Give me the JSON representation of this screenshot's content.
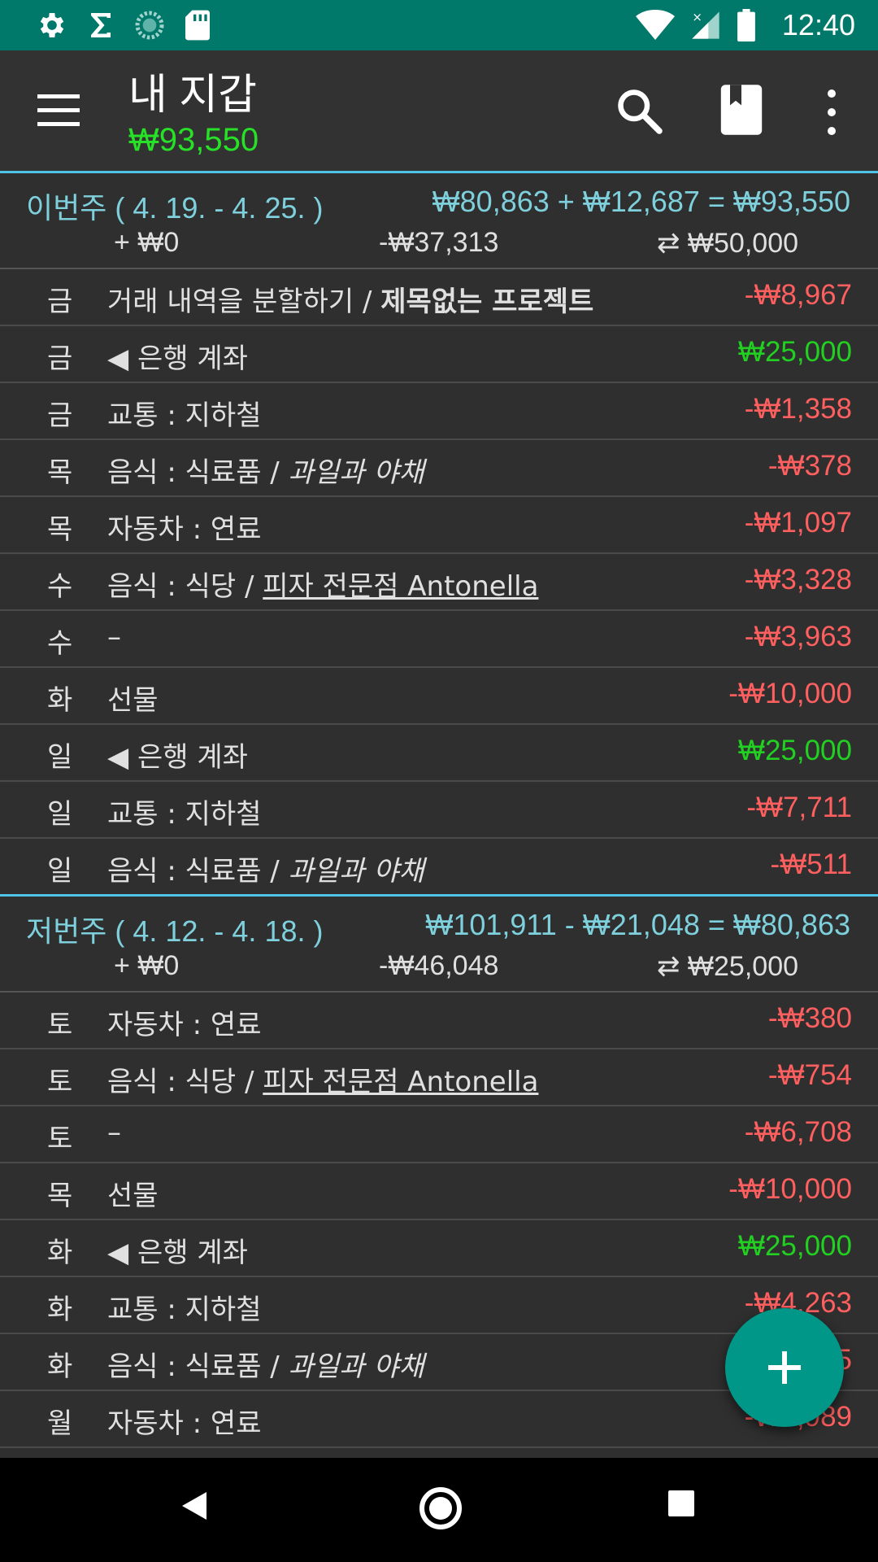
{
  "status_bar": {
    "time": "12:40",
    "icons_left": [
      "gear-icon",
      "sigma-icon",
      "sync-progress-icon",
      "sd-card-icon"
    ],
    "icons_right": [
      "wifi-icon",
      "cell-signal-icon",
      "battery-icon"
    ]
  },
  "app_bar": {
    "title": "내 지갑",
    "balance": "₩93,550",
    "actions": [
      "search-icon",
      "book-icon",
      "more-vert-icon"
    ]
  },
  "weeks": [
    {
      "label": "이번주 ( 4. 19. -  4. 25. )",
      "formula": "₩80,863 + ₩12,687 = ₩93,550",
      "income": "+ ₩0",
      "expense": "-₩37,313",
      "transfer": "⇄ ₩50,000",
      "rows": [
        {
          "day": "금",
          "desc": "거래 내역을 분할하기 / ",
          "extra": "제목없는 프로젝트",
          "amount": "-₩8,967"
        },
        {
          "day": "금",
          "desc": "◀ 은행 계좌",
          "amount": "₩25,000"
        },
        {
          "day": "금",
          "desc": "교통 : 지하철",
          "amount": "-₩1,358"
        },
        {
          "day": "목",
          "desc": "음식 : 식료품 / ",
          "extra": "과일과 야채",
          "amount": "-₩378"
        },
        {
          "day": "목",
          "desc": "자동차 : 연료",
          "amount": "-₩1,097"
        },
        {
          "day": "수",
          "desc": "음식 : 식당 / ",
          "extra": "피자 전문점 Antonella",
          "amount": "-₩3,328"
        },
        {
          "day": "수",
          "desc": "–",
          "amount": "-₩3,963"
        },
        {
          "day": "화",
          "desc": "선물",
          "amount": "-₩10,000"
        },
        {
          "day": "일",
          "desc": "◀ 은행 계좌",
          "amount": "₩25,000"
        },
        {
          "day": "일",
          "desc": "교통 : 지하철",
          "amount": "-₩7,711"
        },
        {
          "day": "일",
          "desc": "음식 : 식료품 / ",
          "extra": "과일과 야채",
          "amount": "-₩511"
        }
      ]
    },
    {
      "label": "저번주 ( 4. 12. -  4. 18. )",
      "formula": "₩101,911 - ₩21,048 = ₩80,863",
      "income": "+ ₩0",
      "expense": "-₩46,048",
      "transfer": "⇄ ₩25,000",
      "rows": [
        {
          "day": "토",
          "desc": "자동차 : 연료",
          "amount": "-₩380"
        },
        {
          "day": "토",
          "desc": "음식 : 식당 / ",
          "extra": "피자 전문점 Antonella",
          "amount": "-₩754"
        },
        {
          "day": "토",
          "desc": "–",
          "amount": "-₩6,708"
        },
        {
          "day": "목",
          "desc": "선물",
          "amount": "-₩10,000"
        },
        {
          "day": "화",
          "desc": "◀ 은행 계좌",
          "amount": "₩25,000"
        },
        {
          "day": "화",
          "desc": "교통 : 지하철",
          "amount": "-₩4,263"
        },
        {
          "day": "화",
          "desc": "음식 : 식료품 / ",
          "extra": "과일과 야채",
          "amount": "-₩5"
        },
        {
          "day": "월",
          "desc": "자동차 : 연료",
          "amount": "-₩1,989"
        }
      ]
    }
  ],
  "colors": {
    "status_bar": "#00796b",
    "accent_line": "#4fc3e8",
    "negative": "#ff5f5f",
    "positive": "#22d022",
    "fab": "#009688"
  }
}
